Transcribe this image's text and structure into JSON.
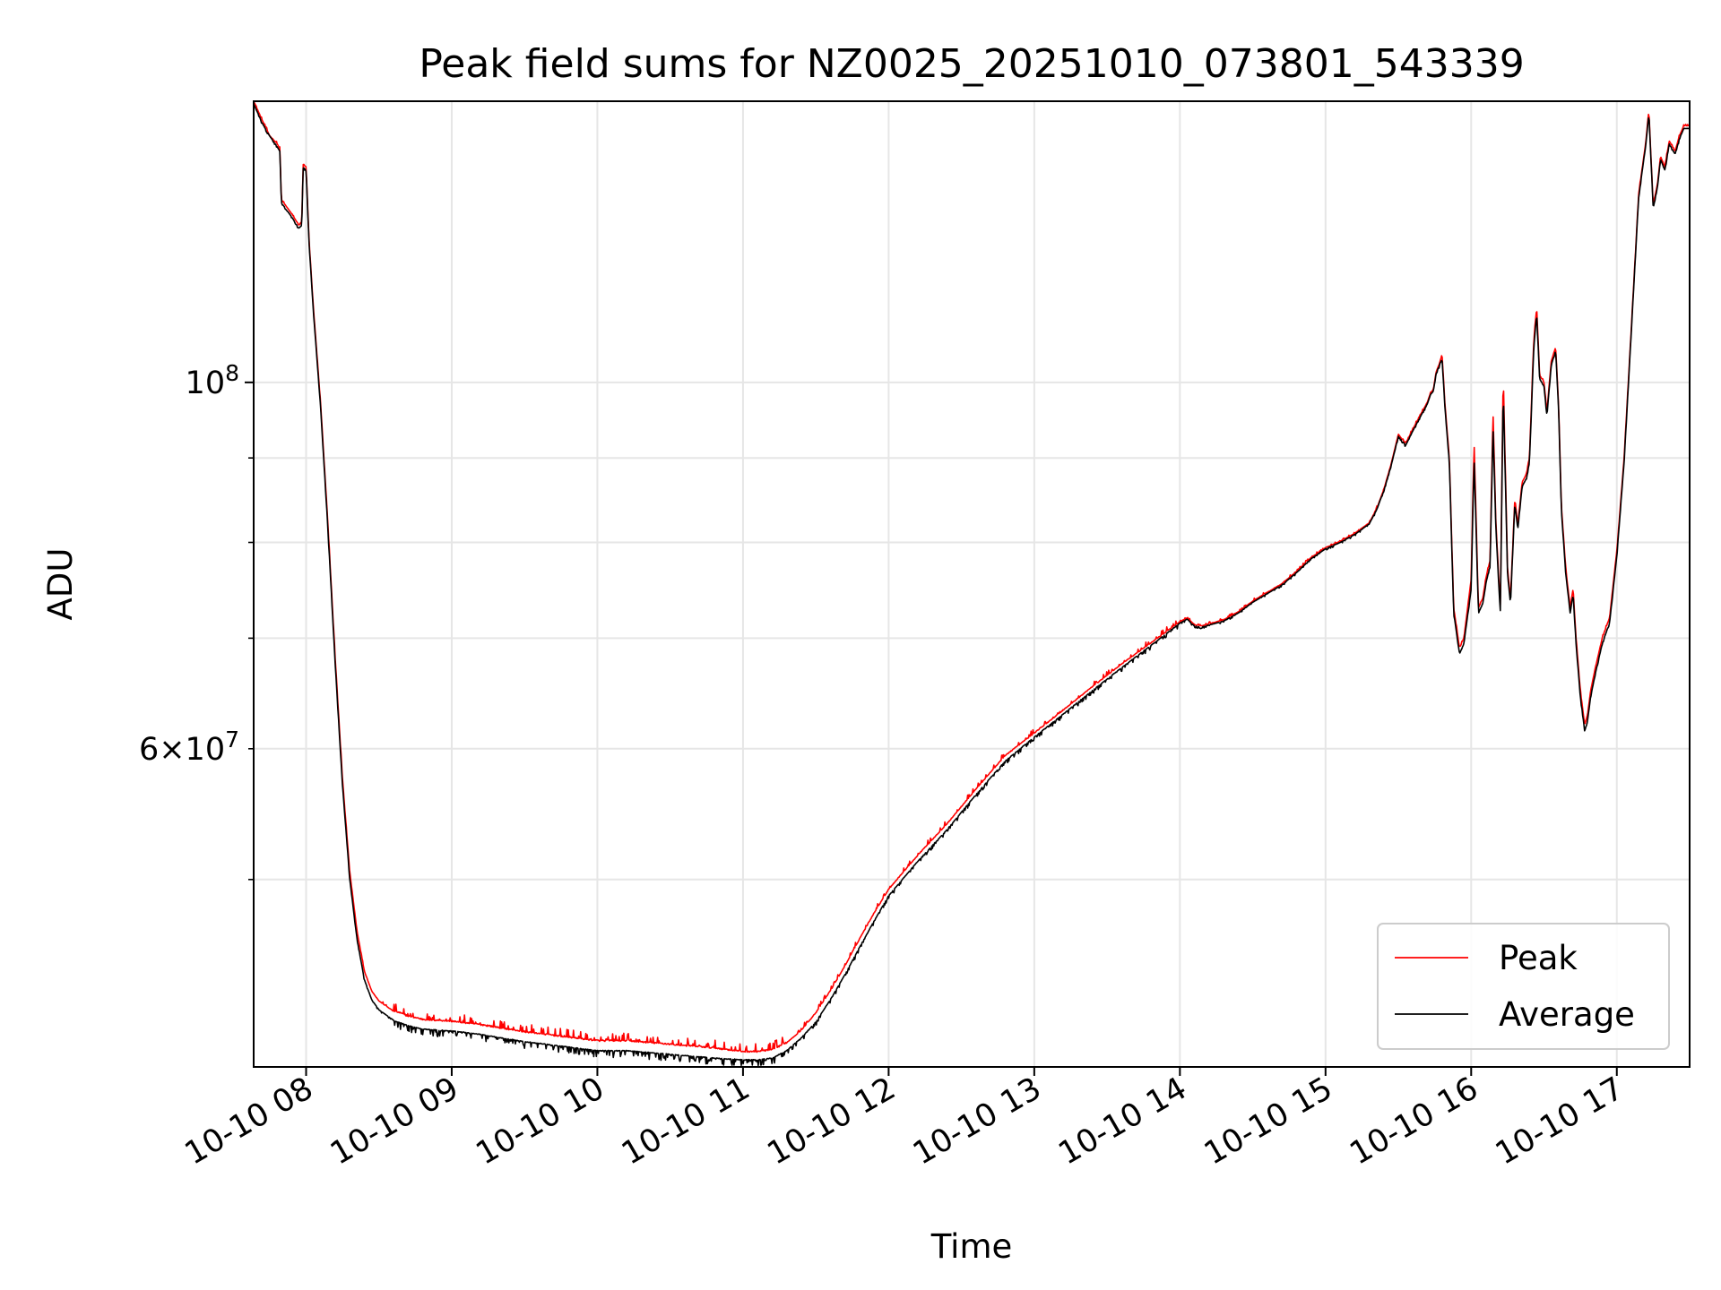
{
  "chart_data": {
    "type": "line",
    "title": "Peak field sums for NZ0025_20251010_073801_543339",
    "xlabel": "Time",
    "ylabel": "ADU",
    "yscale": "log",
    "xlim": [
      7.64,
      17.5
    ],
    "ylim": [
      38500000,
      148000000
    ],
    "grid": true,
    "legend_position": "lower-right",
    "x_ticks": [
      {
        "value": 8,
        "label": "10-10 08"
      },
      {
        "value": 9,
        "label": "10-10 09"
      },
      {
        "value": 10,
        "label": "10-10 10"
      },
      {
        "value": 11,
        "label": "10-10 11"
      },
      {
        "value": 12,
        "label": "10-10 12"
      },
      {
        "value": 13,
        "label": "10-10 13"
      },
      {
        "value": 14,
        "label": "10-10 14"
      },
      {
        "value": 15,
        "label": "10-10 15"
      },
      {
        "value": 16,
        "label": "10-10 16"
      },
      {
        "value": 17,
        "label": "10-10 17"
      }
    ],
    "y_ticks_major": [
      {
        "value": 100000000,
        "base": "10",
        "exp": "8"
      }
    ],
    "y_ticks_minor": [
      {
        "value": 50000000,
        "label": ""
      },
      {
        "value": 60000000,
        "label": "6×10",
        "exp": "7"
      },
      {
        "value": 70000000,
        "label": ""
      },
      {
        "value": 80000000,
        "label": ""
      },
      {
        "value": 90000000,
        "label": ""
      }
    ],
    "series": [
      {
        "name": "Peak",
        "color": "#ff0000",
        "noise": 0.012,
        "x": [
          7.64,
          7.7,
          7.75,
          7.8,
          7.82,
          7.83,
          7.9,
          7.95,
          7.97,
          7.98,
          8.0,
          8.02,
          8.05,
          8.1,
          8.15,
          8.2,
          8.25,
          8.3,
          8.35,
          8.4,
          8.45,
          8.5,
          8.55,
          8.6,
          8.7,
          8.8,
          9.0,
          9.2,
          9.5,
          9.8,
          10.0,
          10.2,
          10.5,
          10.8,
          11.0,
          11.1,
          11.2,
          11.3,
          11.4,
          11.5,
          11.6,
          11.7,
          11.8,
          11.9,
          12.0,
          12.2,
          12.4,
          12.6,
          12.8,
          13.0,
          13.2,
          13.4,
          13.6,
          13.8,
          14.0,
          14.05,
          14.1,
          14.15,
          14.2,
          14.3,
          14.4,
          14.5,
          14.6,
          14.7,
          14.8,
          14.9,
          15.0,
          15.1,
          15.2,
          15.3,
          15.35,
          15.4,
          15.45,
          15.5,
          15.55,
          15.6,
          15.65,
          15.7,
          15.72,
          15.74,
          15.76,
          15.78,
          15.8,
          15.82,
          15.85,
          15.88,
          15.9,
          15.92,
          15.95,
          16.0,
          16.02,
          16.05,
          16.08,
          16.1,
          16.13,
          16.15,
          16.17,
          16.2,
          16.22,
          16.25,
          16.27,
          16.3,
          16.32,
          16.35,
          16.38,
          16.4,
          16.43,
          16.45,
          16.47,
          16.5,
          16.52,
          16.55,
          16.58,
          16.6,
          16.62,
          16.65,
          16.68,
          16.7,
          16.72,
          16.75,
          16.78,
          16.8,
          16.82,
          16.85,
          16.9,
          16.95,
          17.0,
          17.05,
          17.1,
          17.15,
          17.2,
          17.22,
          17.25,
          17.28,
          17.3,
          17.33,
          17.36,
          17.4,
          17.43,
          17.46,
          17.5
        ],
        "values": [
          148000000,
          144000000,
          141000000,
          139500000,
          138500000,
          129000000,
          126500000,
          124500000,
          125000000,
          135500000,
          135000000,
          122000000,
          111000000,
          97000000,
          82000000,
          68000000,
          57500000,
          50500000,
          46500000,
          44000000,
          42800000,
          42200000,
          41900000,
          41600000,
          41300000,
          41100000,
          41000000,
          40800000,
          40400000,
          40100000,
          39900000,
          39900000,
          39700000,
          39500000,
          39300000,
          39300000,
          39400000,
          39800000,
          40500000,
          41500000,
          42800000,
          44300000,
          46000000,
          47700000,
          49300000,
          51700000,
          54000000,
          56700000,
          59400000,
          61300000,
          63300000,
          65400000,
          67500000,
          69500000,
          71600000,
          72000000,
          71300000,
          71200000,
          71400000,
          71800000,
          72600000,
          73700000,
          74600000,
          75500000,
          76800000,
          78300000,
          79400000,
          80100000,
          81000000,
          82200000,
          83800000,
          86100000,
          89200000,
          93000000,
          91800000,
          93700000,
          95500000,
          97300000,
          98500000,
          99000000,
          101500000,
          102500000,
          104000000,
          97000000,
          90000000,
          73000000,
          71000000,
          69000000,
          70000000,
          76000000,
          92000000,
          73000000,
          74000000,
          76000000,
          78000000,
          96000000,
          82000000,
          73000000,
          101000000,
          77000000,
          74000000,
          85000000,
          82000000,
          87000000,
          88000000,
          90000000,
          106000000,
          111000000,
          101000000,
          100000000,
          96000000,
          103000000,
          105000000,
          97000000,
          84000000,
          77000000,
          73000000,
          75000000,
          70000000,
          65000000,
          62000000,
          63000000,
          65000000,
          67000000,
          70000000,
          72000000,
          79000000,
          90000000,
          108000000,
          130000000,
          140000000,
          146000000,
          128000000,
          132000000,
          137000000,
          135000000,
          140000000,
          138000000,
          141000000,
          143000000,
          143000000
        ]
      },
      {
        "name": "Average",
        "color": "#000000",
        "noise": 0.01,
        "x": [
          7.64,
          7.7,
          7.75,
          7.8,
          7.82,
          7.83,
          7.9,
          7.95,
          7.97,
          7.98,
          8.0,
          8.02,
          8.05,
          8.1,
          8.15,
          8.2,
          8.25,
          8.3,
          8.35,
          8.4,
          8.45,
          8.5,
          8.55,
          8.6,
          8.7,
          8.8,
          9.0,
          9.2,
          9.5,
          9.8,
          10.0,
          10.2,
          10.5,
          10.8,
          11.0,
          11.1,
          11.2,
          11.3,
          11.4,
          11.5,
          11.6,
          11.7,
          11.8,
          11.9,
          12.0,
          12.2,
          12.4,
          12.6,
          12.8,
          13.0,
          13.2,
          13.4,
          13.6,
          13.8,
          14.0,
          14.05,
          14.1,
          14.15,
          14.2,
          14.3,
          14.4,
          14.5,
          14.6,
          14.7,
          14.8,
          14.9,
          15.0,
          15.1,
          15.2,
          15.3,
          15.35,
          15.4,
          15.45,
          15.5,
          15.55,
          15.6,
          15.65,
          15.7,
          15.72,
          15.74,
          15.76,
          15.78,
          15.8,
          15.82,
          15.85,
          15.88,
          15.9,
          15.92,
          15.95,
          16.0,
          16.02,
          16.05,
          16.08,
          16.1,
          16.13,
          16.15,
          16.17,
          16.2,
          16.22,
          16.25,
          16.27,
          16.3,
          16.32,
          16.35,
          16.38,
          16.4,
          16.43,
          16.45,
          16.47,
          16.5,
          16.52,
          16.55,
          16.58,
          16.6,
          16.62,
          16.65,
          16.68,
          16.7,
          16.72,
          16.75,
          16.78,
          16.8,
          16.82,
          16.85,
          16.9,
          16.95,
          17.0,
          17.05,
          17.1,
          17.15,
          17.2,
          17.22,
          17.25,
          17.28,
          17.3,
          17.33,
          17.36,
          17.4,
          17.43,
          17.46,
          17.5
        ],
        "values": [
          147500000,
          143500000,
          141000000,
          139000000,
          138000000,
          128500000,
          126000000,
          124000000,
          124500000,
          135000000,
          134500000,
          121500000,
          110500000,
          96500000,
          81500000,
          67500000,
          57000000,
          50000000,
          46000000,
          43500000,
          42300000,
          41700000,
          41400000,
          41100000,
          40800000,
          40600000,
          40500000,
          40300000,
          39900000,
          39600000,
          39400000,
          39400000,
          39200000,
          39000000,
          38900000,
          38900000,
          39000000,
          39400000,
          40100000,
          41000000,
          42300000,
          43800000,
          45500000,
          47200000,
          48900000,
          51300000,
          53600000,
          56300000,
          59000000,
          61000000,
          63000000,
          65100000,
          67200000,
          69300000,
          71500000,
          71900000,
          71200000,
          71100000,
          71300000,
          71700000,
          72500000,
          73600000,
          74500000,
          75400000,
          76700000,
          78200000,
          79300000,
          80000000,
          80900000,
          82100000,
          83700000,
          86000000,
          89000000,
          92800000,
          91600000,
          93500000,
          95300000,
          97100000,
          98300000,
          98800000,
          101300000,
          102300000,
          103500000,
          96500000,
          89500000,
          72500000,
          70500000,
          68500000,
          69500000,
          75000000,
          90000000,
          72500000,
          73500000,
          75500000,
          77500000,
          94000000,
          81500000,
          72500000,
          99000000,
          76500000,
          73500000,
          84500000,
          81500000,
          86500000,
          87500000,
          89500000,
          105000000,
          110000000,
          100500000,
          99500000,
          95500000,
          102500000,
          104500000,
          96500000,
          83500000,
          76500000,
          72500000,
          74500000,
          69500000,
          64500000,
          61500000,
          62500000,
          64500000,
          66500000,
          69500000,
          71500000,
          78500000,
          89500000,
          107500000,
          129500000,
          139500000,
          145500000,
          127500000,
          131500000,
          136500000,
          134500000,
          139500000,
          137500000,
          140500000,
          142500000,
          142500000
        ]
      }
    ]
  }
}
